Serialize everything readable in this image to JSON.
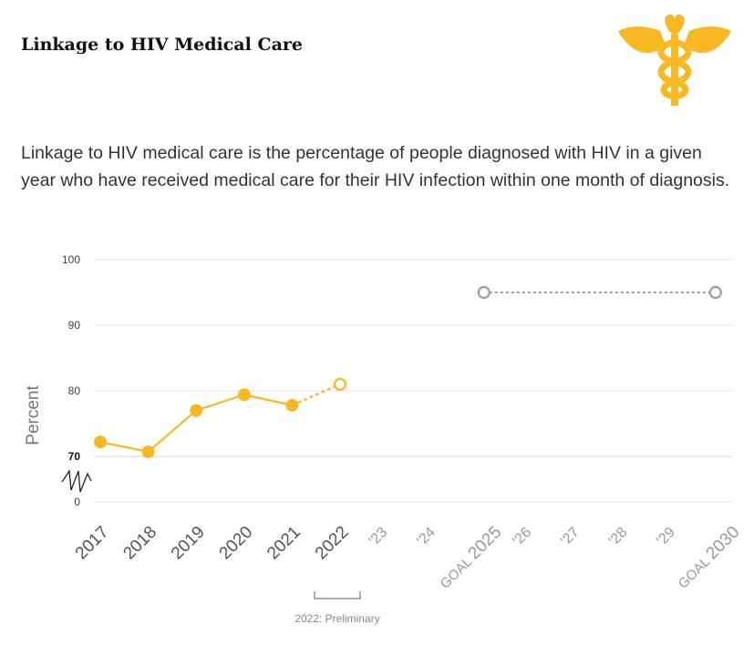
{
  "title": "Linkage to HIV Medical Care",
  "description": "Linkage to HIV medical care is the percentage of people diagnosed with HIV in a given year who have received medical care for their HIV infection within one month of diagnosis.",
  "logo_icon": "caduceus-icon",
  "colors": {
    "accent": "#F8B822",
    "goal": "#9E9E9E",
    "grid": "#E3E3E3",
    "text": "#555555"
  },
  "chart_data": {
    "type": "line",
    "ylabel": "Percent",
    "ylim": [
      70,
      100
    ],
    "yticks": [
      "100",
      "90",
      "80",
      "70",
      "0"
    ],
    "axis_break": true,
    "categories": [
      "2017",
      "2018",
      "2019",
      "2020",
      "2021",
      "2022",
      "'23",
      "'24",
      "GOAL 2025",
      "'26",
      "'27",
      "'28",
      "'29",
      "GOAL 2030"
    ],
    "series": [
      {
        "values": [
          72.2,
          70.7,
          77.0,
          79.4,
          77.8,
          81.0,
          null,
          null,
          null,
          null,
          null,
          null,
          null,
          null
        ]
      },
      {
        "values": [
          null,
          null,
          null,
          null,
          null,
          null,
          null,
          null,
          95,
          null,
          null,
          null,
          null,
          95
        ]
      }
    ],
    "annotation": "2022: Preliminary"
  }
}
